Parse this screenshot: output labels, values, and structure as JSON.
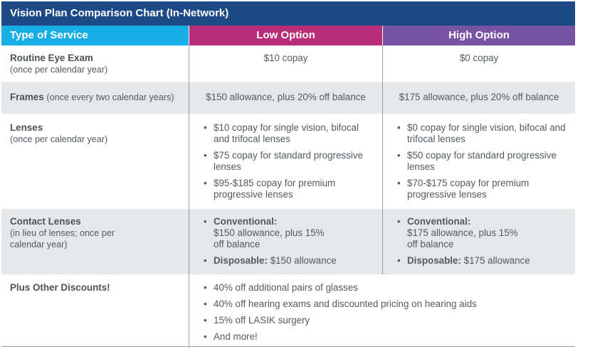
{
  "title": "Vision Plan Comparison Chart (In-Network)",
  "headers": {
    "type": "Type of Service",
    "low": "Low Option",
    "high": "High Option"
  },
  "exam": {
    "name": "Routine Eye Exam",
    "sub": "(once per calendar year)",
    "low": "$10 copay",
    "high": "$0 copay"
  },
  "frames": {
    "name": "Frames",
    "sub": "(once every two calendar years)",
    "low": "$150 allowance, plus 20% off balance",
    "high": "$175 allowance, plus 20% off balance"
  },
  "lenses": {
    "name": "Lenses",
    "sub": "(once per calendar year)",
    "low": [
      "$10 copay for single vision, bifocal and trifocal lenses",
      "$75 copay for standard progressive lenses",
      "$95-$185 copay for premium progressive lenses"
    ],
    "high": [
      "$0 copay for single vision, bifocal and trifocal lenses",
      "$50 copay for standard progressive lenses",
      "$70-$175 copay for premium progressive lenses"
    ]
  },
  "contacts": {
    "name": "Contact Lenses",
    "sub": "(in lieu of lenses; once per calendar year)",
    "conventional_label": "Conventional:",
    "disposable_label": "Disposable:",
    "low_conventional": "$150 allowance, plus 15% off balance",
    "low_disposable": "$150 allowance",
    "high_conventional": "$175 allowance, plus 15% off balance",
    "high_disposable": "$175 allowance"
  },
  "discounts": {
    "name": "Plus Other Discounts!",
    "items": [
      "40% off additional pairs of glasses",
      "40% off hearing exams and discounted pricing on hearing aids",
      "15% off LASIK surgery",
      "And more!"
    ]
  }
}
